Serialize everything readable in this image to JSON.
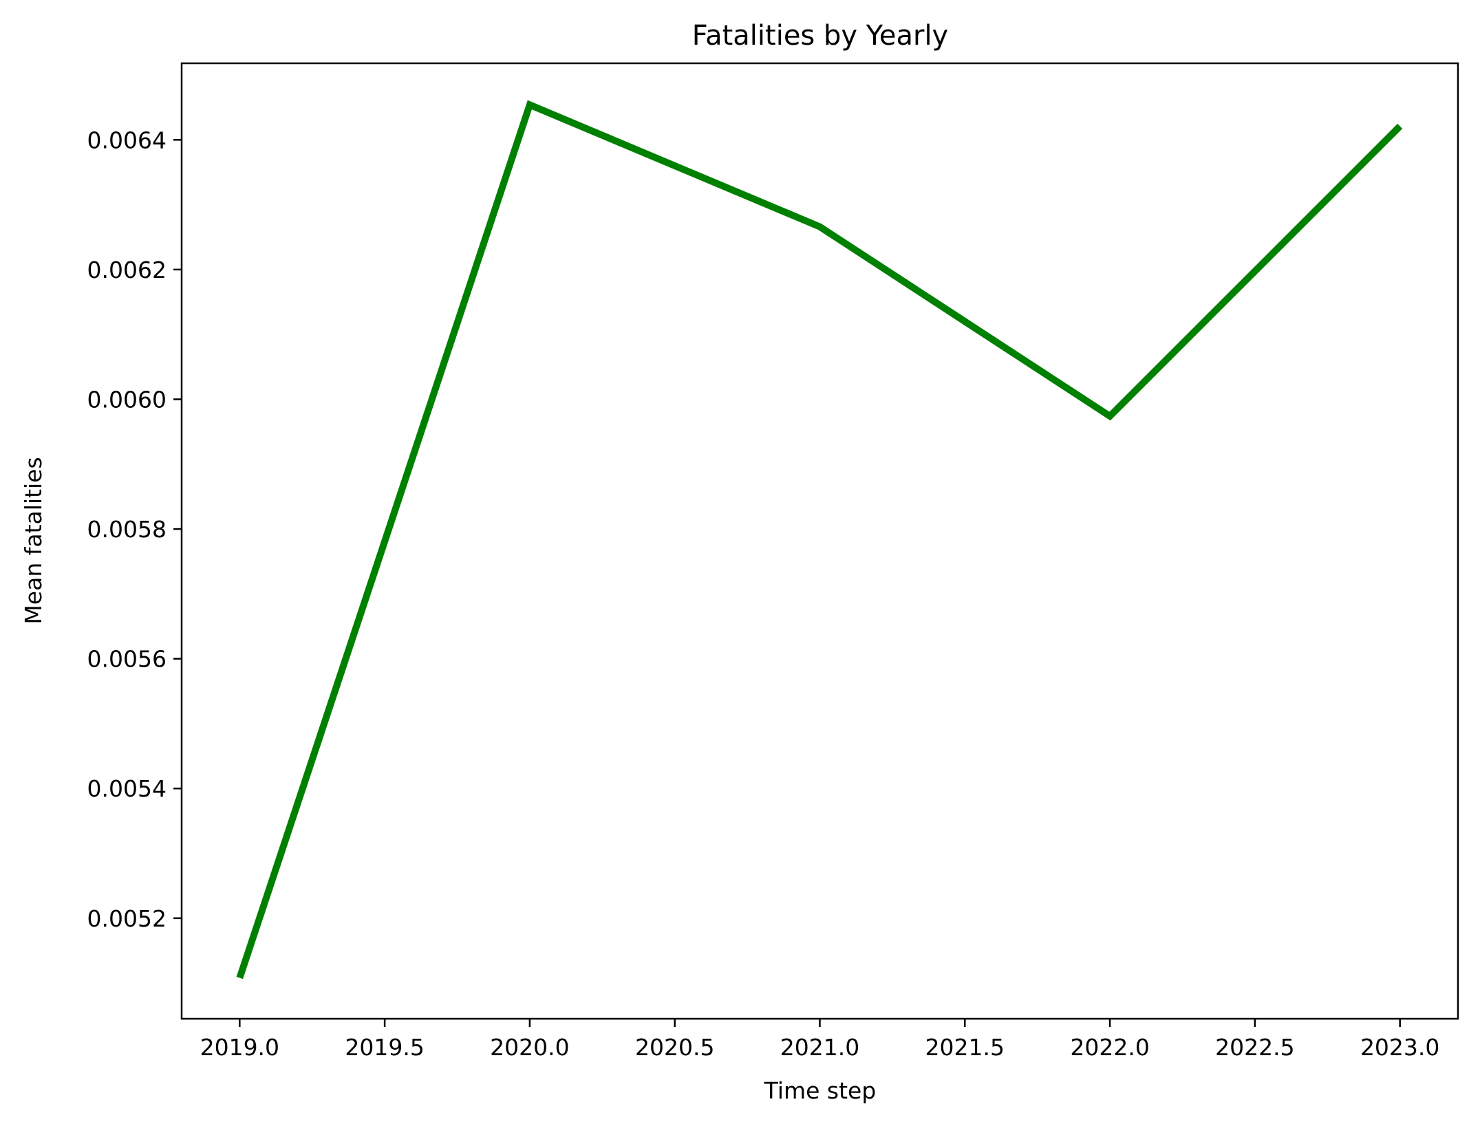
{
  "chart_data": {
    "type": "line",
    "title": "Fatalities by Yearly",
    "xlabel": "Time step",
    "ylabel": "Mean fatalities",
    "x": [
      2019.0,
      2020.0,
      2021.0,
      2022.0,
      2023.0
    ],
    "series": [
      {
        "values": [
          0.005108,
          0.006454,
          0.006266,
          0.005974,
          0.006421
        ],
        "color": "#008000"
      }
    ],
    "xlim": [
      2018.8,
      2023.2
    ],
    "ylim": [
      0.005045,
      0.006518
    ],
    "xticks": [
      2019.0,
      2019.5,
      2020.0,
      2020.5,
      2021.0,
      2021.5,
      2022.0,
      2022.5,
      2023.0
    ],
    "xtick_labels": [
      "2019.0",
      "2019.5",
      "2020.0",
      "2020.5",
      "2021.0",
      "2021.5",
      "2022.0",
      "2022.5",
      "2023.0"
    ],
    "yticks": [
      0.0052,
      0.0054,
      0.0056,
      0.0058,
      0.006,
      0.0062,
      0.0064
    ],
    "ytick_labels": [
      "0.0052",
      "0.0054",
      "0.0056",
      "0.0058",
      "0.0060",
      "0.0062",
      "0.0064"
    ],
    "grid": false,
    "legend": "none"
  }
}
